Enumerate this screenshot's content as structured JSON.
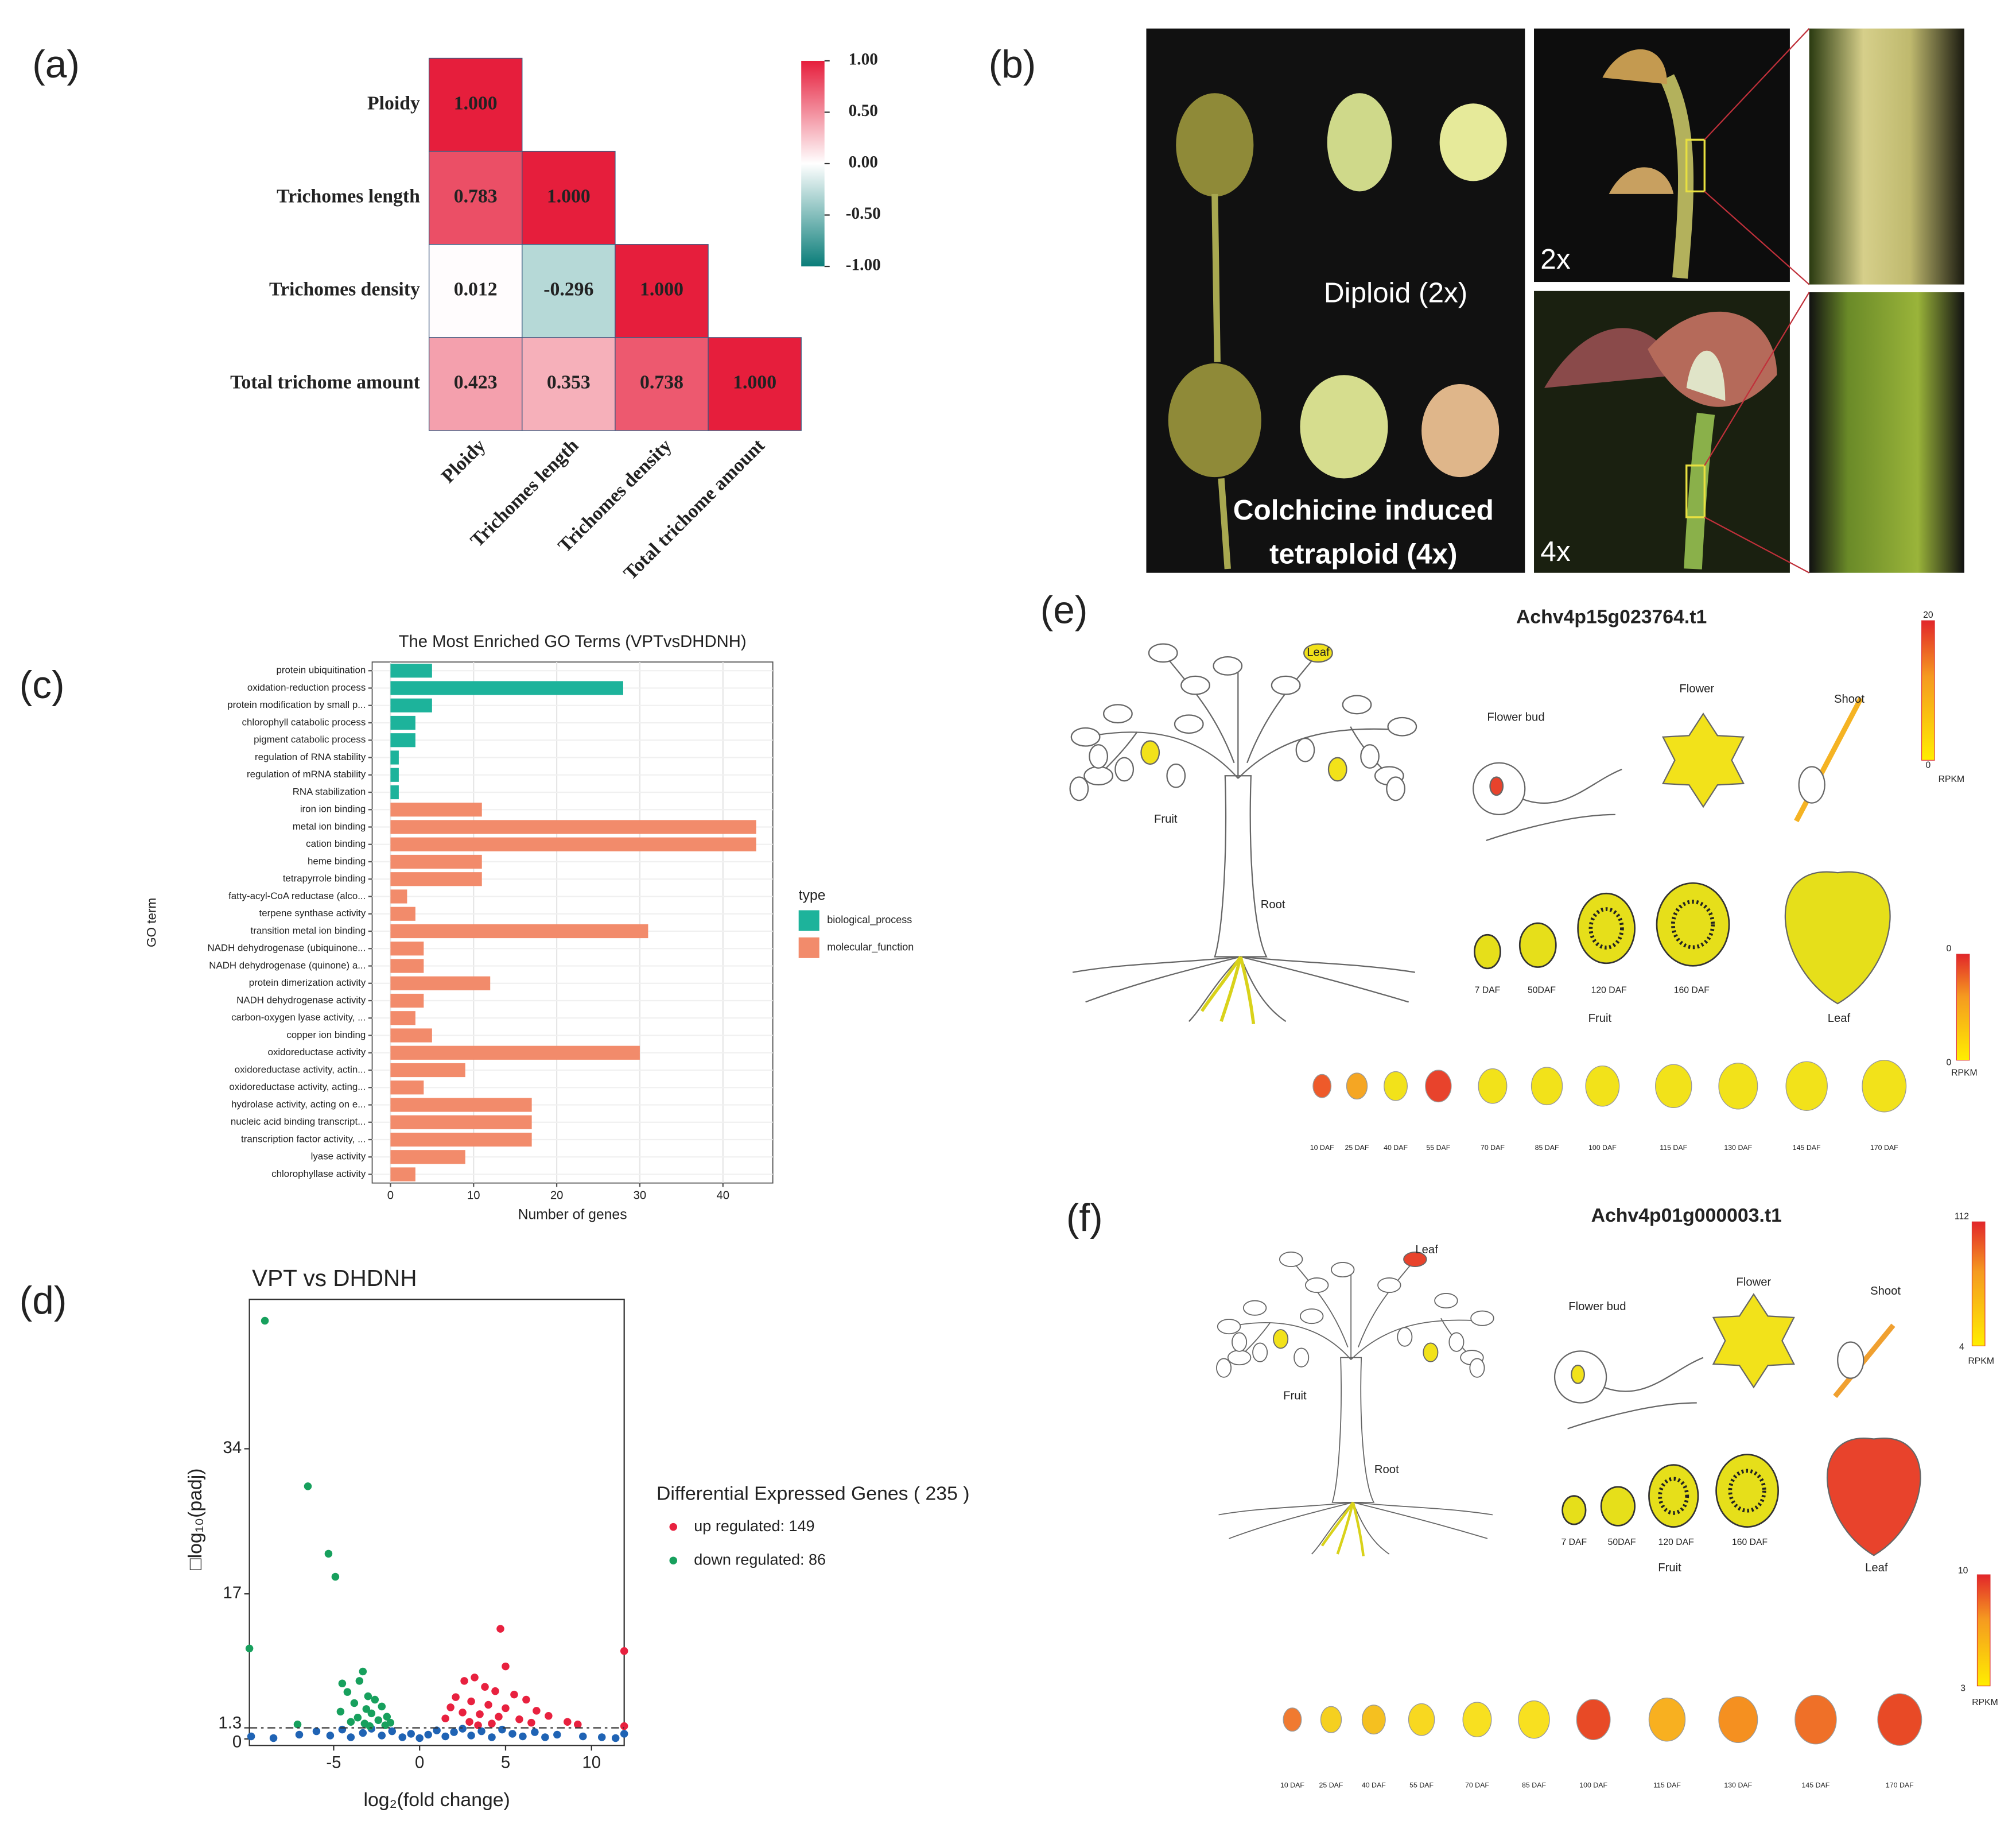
{
  "panel_labels": [
    "(a)",
    "(b)",
    "(c)",
    "(d)",
    "(e)",
    "(f)"
  ],
  "chart_data": [
    {
      "type": "heatmap",
      "rows": [
        "Ploidy",
        "Trichomes length",
        "Trichomes density",
        "Total trichome amount"
      ],
      "columns": [
        "Ploidy",
        "Trichomes length",
        "Trichomes density",
        "Total trichome amount"
      ],
      "values": [
        [
          1
        ],
        [
          0.783,
          1
        ],
        [
          0.012,
          -0.296,
          1
        ],
        [
          0.423,
          0.353,
          0.738,
          1
        ]
      ],
      "value_labels": [
        [
          "1.000"
        ],
        [
          "0.783",
          "1.000"
        ],
        [
          "0.012",
          "-0.296",
          "1.000"
        ],
        [
          "0.423",
          "0.353",
          "0.738",
          "1.000"
        ]
      ],
      "colorbar_lim": [
        -1,
        1
      ],
      "colorbar_ticks": [
        {
          "value": 1,
          "label": "1.00"
        },
        {
          "value": 0.5,
          "label": "0.50"
        },
        {
          "value": 0,
          "label": "0.00"
        },
        {
          "value": -0.5,
          "label": "-0.50"
        },
        {
          "value": -1,
          "label": "-1.00"
        }
      ],
      "colors": [
        "#0a7d79",
        "#ffffff",
        "#e61e3c"
      ]
    },
    {
      "type": "barh",
      "title": "The Most Enriched GO Terms (VPTvsDHDNH)",
      "x_label": "Number of genes",
      "y_label": "GO term",
      "legend_title": "type",
      "categories": [
        "protein ubiquitination",
        "oxidation-reduction process",
        "protein modification by small p...",
        "chlorophyll catabolic process",
        "pigment catabolic process",
        "regulation of RNA stability",
        "regulation of mRNA stability",
        "RNA stabilization",
        "iron ion binding",
        "metal ion binding",
        "cation binding",
        "heme binding",
        "tetrapyrrole binding",
        "fatty-acyl-CoA reductase (alco...",
        "terpene synthase activity",
        "transition metal ion binding",
        "NADH dehydrogenase (ubiquinone...",
        "NADH dehydrogenase (quinone) a...",
        "protein dimerization activity",
        "NADH dehydrogenase activity",
        "carbon-oxygen lyase activity, ...",
        "copper ion binding",
        "oxidoreductase activity",
        "oxidoreductase activity, actin...",
        "oxidoreductase activity, acting...",
        "hydrolase activity, acting on e...",
        "nucleic acid binding transcript...",
        "transcription factor activity, ...",
        "lyase activity",
        "chlorophyllase activity"
      ],
      "series": [
        {
          "name": "biological_process",
          "color": "#1db39b",
          "values": [
            5,
            28,
            5,
            3,
            3,
            1,
            1,
            1,
            null,
            null,
            null,
            null,
            null,
            null,
            null,
            null,
            null,
            null,
            null,
            null,
            null,
            null,
            null,
            null,
            null,
            null,
            null,
            null,
            null,
            null
          ]
        },
        {
          "name": "molecular_function",
          "color": "#f28b6b",
          "values": [
            null,
            null,
            null,
            null,
            null,
            null,
            null,
            null,
            11,
            44,
            44,
            11,
            11,
            2,
            3,
            31,
            4,
            4,
            12,
            4,
            3,
            5,
            30,
            9,
            4,
            17,
            17,
            17,
            9,
            3
          ]
        }
      ],
      "xlim": [
        -2.2,
        46
      ],
      "xticks": [
        0,
        10,
        20,
        30,
        40
      ],
      "grid": true
    },
    {
      "type": "scatter",
      "title": "VPT vs DHDNH",
      "x_label": "log₂(fold change)",
      "y_label": "□log₁₀(padj)",
      "legend_title": "Differential Expressed Genes ( 235 )",
      "series": [
        {
          "name": "up regulated: 149",
          "color": "#e8213f",
          "x": [
            4.7,
            5,
            11.9,
            3.2,
            2.6,
            3.8,
            4.4,
            5.5,
            2.1,
            6.2,
            3.0,
            4.0,
            1.8,
            5.0,
            6.8,
            2.5,
            3.5,
            7.5,
            4.6,
            1.5,
            5.8,
            8.6,
            2.9,
            6.5,
            9.2,
            4.2,
            3.4,
            11.9
          ],
          "values": [
            12.9,
            8.5,
            10.3,
            7.2,
            6.8,
            6.1,
            5.6,
            5.2,
            4.9,
            4.6,
            4.4,
            4.0,
            3.7,
            3.6,
            3.3,
            3.1,
            2.9,
            2.7,
            2.6,
            2.4,
            2.3,
            2.0,
            2.0,
            1.9,
            1.7,
            1.8,
            1.6,
            1.5
          ]
        },
        {
          "name": "down regulated: 86",
          "color": "#17a05d",
          "x": [
            -9,
            -6.5,
            -5.3,
            -4.9,
            -9.9,
            -3.3,
            -3.5,
            -4.5,
            -4.2,
            -3.0,
            -2.6,
            -3.8,
            -2.2,
            -3.1,
            -4.6,
            -2.8,
            -1.9,
            -3.6,
            -2.4,
            -1.7,
            -3.2,
            -2.0,
            -7.1,
            -4.0,
            -2.9
          ],
          "values": [
            49,
            29.6,
            21.7,
            19,
            10.6,
            7.9,
            6.8,
            6.5,
            5.5,
            5.0,
            4.6,
            4.2,
            3.8,
            3.5,
            3.2,
            3.0,
            2.6,
            2.5,
            2.2,
            1.9,
            1.8,
            1.6,
            1.7,
            2.0,
            1.5
          ]
        },
        {
          "color": "#1f63b4",
          "x": [
            -9.8,
            -8.5,
            -7.0,
            -6.0,
            -5.2,
            -4.5,
            -4.0,
            -3.3,
            -2.8,
            -2.2,
            -1.6,
            -1.0,
            -0.5,
            0,
            0.5,
            1.0,
            1.5,
            2.0,
            2.5,
            3.0,
            3.6,
            4.2,
            4.8,
            5.4,
            6.0,
            6.7,
            7.3,
            8.0,
            9.5,
            10.6,
            11.4,
            11.9
          ],
          "values": [
            0.3,
            0.1,
            0.5,
            0.9,
            0.4,
            1.1,
            0.2,
            0.7,
            1.2,
            0.4,
            0.9,
            0.2,
            0.6,
            0.1,
            0.5,
            1.0,
            0.3,
            0.8,
            1.2,
            0.4,
            0.9,
            0.2,
            1.1,
            0.6,
            0.3,
            0.8,
            0.2,
            0.5,
            0.3,
            0.2,
            0.1,
            0.6
          ]
        }
      ],
      "hline": 1.3,
      "xlim": [
        -9.9,
        11.9
      ],
      "xticks": [
        -5,
        0,
        5,
        10
      ],
      "ylim": [
        -0.76,
        51.5
      ],
      "yticks": [
        0,
        1.3,
        17,
        34
      ]
    }
  ],
  "photo": {
    "labels": [
      "Diploid (2x)",
      "Colchicine induced",
      "tetraploid (4x)",
      "2x",
      "4x"
    ]
  },
  "efp": [
    {
      "gene": "Achv4p15g023764.t1",
      "organ_labels": [
        "Leaf",
        "Flower bud",
        "Flower",
        "Shoot",
        "Fruit",
        "Root"
      ],
      "section_labels": [
        "7 DAF",
        "50DAF",
        "120 DAF",
        "160 DAF",
        "Fruit",
        "Leaf"
      ],
      "scale1": [
        "20",
        "0",
        "RPKM"
      ],
      "scale2": [
        "0",
        "0",
        "RPKM"
      ],
      "timeline": [
        "10 DAF",
        "25 DAF",
        "40 DAF",
        "55 DAF",
        "70 DAF",
        "85 DAF",
        "100 DAF",
        "115 DAF",
        "130 DAF",
        "145 DAF",
        "170 DAF"
      ],
      "timeline_colors": [
        "#ee5a2a",
        "#f5a623",
        "#f2e21a",
        "#e8432c",
        "#f2e21a",
        "#f2e21a",
        "#f2e21a",
        "#f2e21a",
        "#f2e21a",
        "#f2e21a",
        "#f2e21a"
      ],
      "organ_colors": {
        "leaf": "#f2e21a",
        "bud": "#e8432c",
        "flower": "#f2e21a",
        "shoot": "#f5b323",
        "fruit": "#f2e21a",
        "root": "#d9d21a",
        "sections": "#e6df1a",
        "big_leaf": "#e6df1a"
      }
    },
    {
      "gene": "Achv4p01g000003.t1",
      "organ_labels": [
        "Leaf",
        "Flower bud",
        "Flower",
        "Shoot",
        "Fruit",
        "Root"
      ],
      "section_labels": [
        "7 DAF",
        "50DAF",
        "120 DAF",
        "160 DAF",
        "Fruit",
        "Leaf"
      ],
      "scale1": [
        "112",
        "4",
        "RPKM"
      ],
      "scale2": [
        "10",
        "3",
        "RPKM"
      ],
      "timeline": [
        "10 DAF",
        "25 DAF",
        "40 DAF",
        "55 DAF",
        "70 DAF",
        "85 DAF",
        "100 DAF",
        "115 DAF",
        "130 DAF",
        "145 DAF",
        "170 DAF"
      ],
      "timeline_colors": [
        "#f07a30",
        "#f5d020",
        "#f5c020",
        "#f8d820",
        "#f8e020",
        "#f8e020",
        "#e84a26",
        "#f8b020",
        "#f59020",
        "#ef7028",
        "#e84a26"
      ],
      "organ_colors": {
        "leaf": "#e8432c",
        "bud": "#f2e21a",
        "flower": "#f2e21a",
        "shoot": "#f0a030",
        "fruit": "#f2e21a",
        "root": "#d9d21a",
        "sections": "#e6df1a",
        "big_leaf": "#e8432c"
      }
    }
  ]
}
